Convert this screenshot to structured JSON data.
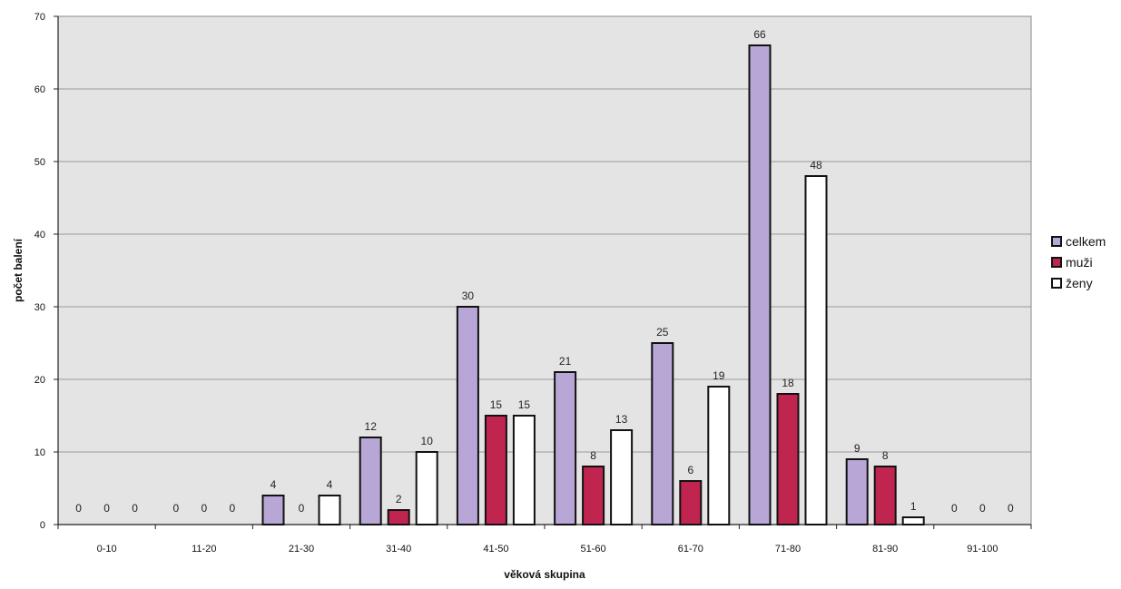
{
  "chart_data": {
    "type": "bar",
    "title": "",
    "xlabel": "věková skupina",
    "ylabel": "počet balení",
    "ylim": [
      0,
      70
    ],
    "yticks": [
      0,
      10,
      20,
      30,
      40,
      50,
      60,
      70
    ],
    "grid": true,
    "legend_position": "right",
    "categories": [
      "0-10",
      "11-20",
      "21-30",
      "31-40",
      "41-50",
      "51-60",
      "61-70",
      "71-80",
      "81-90",
      "91-100"
    ],
    "series": [
      {
        "name": "celkem",
        "color": "#b8a6d6",
        "values": [
          0,
          0,
          4,
          12,
          30,
          21,
          25,
          66,
          9,
          0
        ]
      },
      {
        "name": "muži",
        "color": "#c02550",
        "values": [
          0,
          0,
          0,
          2,
          15,
          8,
          6,
          18,
          8,
          0
        ]
      },
      {
        "name": "ženy",
        "color": "#ffffff",
        "values": [
          0,
          0,
          4,
          10,
          15,
          13,
          19,
          48,
          1,
          0
        ]
      }
    ]
  }
}
